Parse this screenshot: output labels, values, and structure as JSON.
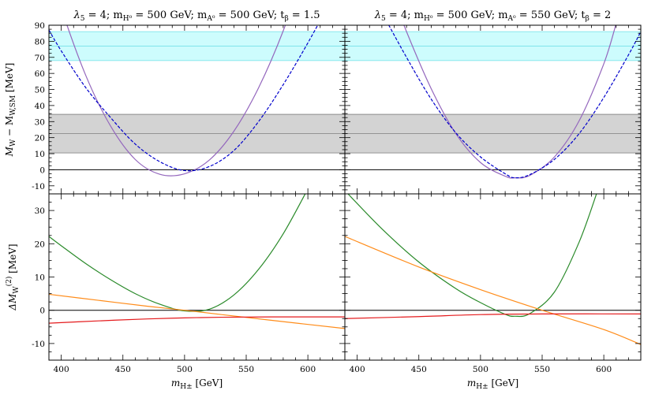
{
  "chart_data": {
    "type": "line",
    "xlabel": "m_{H^±} [GeV]",
    "xlabel_main": "m",
    "xlabel_sub": "H±",
    "xlabel_unit": " [GeV]",
    "top_ylabel": "M_W − M_{W,SM} [MeV]",
    "top_ylabel_a": "M",
    "top_ylabel_a_sub": "W",
    "top_ylabel_b": " − M",
    "top_ylabel_b_sub": "W,SM",
    "top_ylabel_unit": " [MeV]",
    "bottom_ylabel": "ΔM_W^(2) [MeV]",
    "bottom_ylabel_a": "ΔM",
    "bottom_ylabel_sub": "W",
    "bottom_ylabel_sup": "(2)",
    "bottom_ylabel_unit": " [MeV]",
    "xlim": [
      390,
      630
    ],
    "top_ylim": [
      -15,
      90
    ],
    "bottom_ylim": [
      -15,
      35
    ],
    "xticks": [
      400,
      450,
      500,
      550,
      600
    ],
    "top_yticks": [
      -10,
      0,
      10,
      20,
      30,
      40,
      50,
      60,
      70,
      80,
      90
    ],
    "bottom_yticks": [
      -10,
      0,
      10,
      20,
      30
    ],
    "bands": {
      "cyan": {
        "center": 77,
        "lo": 68,
        "hi": 86,
        "color": "#cdfcfd",
        "line": "#7fe4ea"
      },
      "gray": {
        "center": 22.5,
        "lo": 10.5,
        "hi": 34.5,
        "color": "#d3d3d3",
        "line": "#8a8a8a"
      }
    },
    "colors": {
      "purple": "#9467bd",
      "blue_dashed": "#0000cc",
      "green": "#2a8a2a",
      "orange": "#ff8c1a",
      "red": "#e41a1c"
    },
    "panels": [
      {
        "title_pre": "λ",
        "title_pre_sub": "5",
        "title_a": " = 4; m",
        "title_a_sub": "H⁰",
        "title_b": " = 500 GeV; m",
        "title_b_sub": "A⁰",
        "title_c": " = 500 GeV; t",
        "title_c_sub": "β",
        "title_d": " = 1.5",
        "top_series": [
          {
            "style": "solid",
            "color": "purple",
            "x": [
              390,
              400,
              420,
              440,
              460,
              480,
              500,
              520,
              540,
              560,
              580,
              600
            ],
            "y": [
              127,
              100.5,
              58.5,
              27.2,
              6.4,
              -2.8,
              -2.5,
              6.0,
              24.0,
              51.0,
              86.5,
              131
            ]
          },
          {
            "style": "dashed",
            "color": "blue_dashed",
            "x": [
              390,
              400,
              420,
              440,
              460,
              480,
              500,
              520,
              540,
              560,
              580,
              600,
              620
            ],
            "y": [
              87,
              74,
              51,
              32.5,
              16,
              5,
              -0.5,
              2,
              12,
              30,
              53,
              79,
              107
            ]
          }
        ],
        "bottom_series": [
          {
            "color": "green",
            "x": [
              390,
              400,
              420,
              440,
              460,
              480,
              500,
              520,
              540,
              560,
              580,
              600
            ],
            "y": [
              22.2,
              19.4,
              14.0,
              9.2,
              5.0,
              1.8,
              -0.2,
              0.3,
              4.6,
              12.3,
              23.0,
              36.5
            ]
          },
          {
            "color": "orange",
            "x": [
              390,
              430,
              470,
              500,
              530,
              570,
              630
            ],
            "y": [
              4.8,
              3.0,
              1.2,
              0,
              -1.3,
              -3.0,
              -5.5
            ]
          },
          {
            "color": "red",
            "x": [
              390,
              430,
              470,
              500,
              530,
              570,
              630
            ],
            "y": [
              -3.9,
              -3.2,
              -2.6,
              -2.3,
              -2.1,
              -2.0,
              -2.0
            ]
          }
        ]
      },
      {
        "title_pre": "λ",
        "title_pre_sub": "5",
        "title_a": " = 4; m",
        "title_a_sub": "H⁰",
        "title_b": " = 500 GeV; m",
        "title_b_sub": "A⁰",
        "title_c": " = 550 GeV; t",
        "title_c_sub": "β",
        "title_d": " = 2",
        "top_series": [
          {
            "style": "solid",
            "color": "purple",
            "x": [
              430,
              440,
              460,
              480,
              500,
              520,
              528,
              540,
              560,
              580,
              600,
              610
            ],
            "y": [
              107,
              86,
              50.5,
              22.5,
              4.5,
              -4.0,
              -5.0,
              -3.5,
              8.0,
              30.5,
              66.0,
              91
            ]
          },
          {
            "style": "dashed",
            "color": "blue_dashed",
            "x": [
              420,
              440,
              460,
              480,
              500,
              520,
              528,
              540,
              560,
              580,
              600,
              620,
              630
            ],
            "y": [
              98,
              70,
              44,
              23,
              8,
              -2.5,
              -5.0,
              -3.0,
              6.5,
              22.5,
              45,
              71.5,
              86
            ]
          }
        ],
        "bottom_series": [
          {
            "color": "green",
            "x": [
              390,
              420,
              450,
              480,
              500,
              520,
              528,
              540,
              560,
              580,
              595
            ],
            "y": [
              36,
              24.5,
              14.5,
              6.5,
              2.3,
              -1.2,
              -1.8,
              -1.0,
              5.5,
              20.5,
              36
            ]
          },
          {
            "color": "orange",
            "x": [
              390,
              450,
              500,
              550,
              600,
              630
            ],
            "y": [
              22.2,
              13.0,
              6.2,
              0,
              -5.8,
              -10.3
            ]
          },
          {
            "color": "red",
            "x": [
              390,
              450,
              500,
              550,
              630
            ],
            "y": [
              -2.5,
              -1.9,
              -1.3,
              -1.1,
              -1.1
            ]
          }
        ]
      }
    ]
  }
}
